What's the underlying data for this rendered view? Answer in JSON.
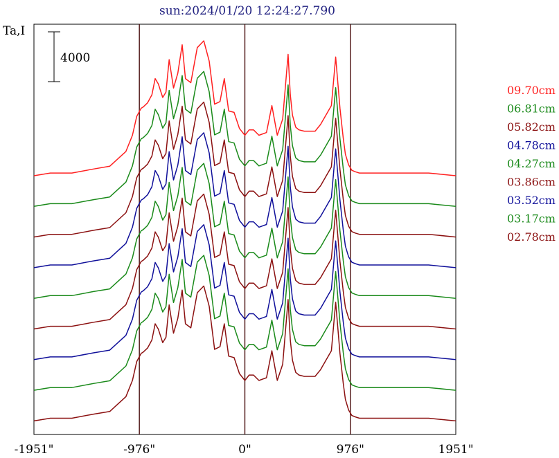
{
  "chart_data": {
    "type": "line",
    "title": "sun:2024/01/20 12:24:27.790",
    "ylabel": "Ta,I",
    "scale_bar_label": "4000",
    "scale_bar_value": 4000,
    "x_ticks": [
      {
        "value": -1951,
        "label": "-1951\""
      },
      {
        "value": -976,
        "label": "-976\""
      },
      {
        "value": 0,
        "label": "0\""
      },
      {
        "value": 976,
        "label": "976\""
      },
      {
        "value": 1951,
        "label": "1951\""
      }
    ],
    "xlim": [
      -1951,
      1951
    ],
    "vlines": [
      -976,
      0,
      976
    ],
    "legend_placement": "right",
    "series": [
      {
        "name": "09.70cm",
        "color": "#ff2020"
      },
      {
        "name": "06.81cm",
        "color": "#1a8a1a"
      },
      {
        "name": "05.82cm",
        "color": "#8b1010"
      },
      {
        "name": "04.78cm",
        "color": "#10109a"
      },
      {
        "name": "04.27cm",
        "color": "#1a8a1a"
      },
      {
        "name": "03.86cm",
        "color": "#8b1010"
      },
      {
        "name": "03.52cm",
        "color": "#10109a"
      },
      {
        "name": "03.17cm",
        "color": "#1a8a1a"
      },
      {
        "name": "02.78cm",
        "color": "#8b1010"
      }
    ],
    "profile_x": [
      -1951,
      -1800,
      -1600,
      -1400,
      -1250,
      -1100,
      -1040,
      -1000,
      -960,
      -940,
      -900,
      -860,
      -830,
      -800,
      -760,
      -730,
      -700,
      -660,
      -620,
      -580,
      -550,
      -500,
      -440,
      -380,
      -330,
      -280,
      -230,
      -190,
      -150,
      -100,
      -50,
      0,
      40,
      80,
      130,
      200,
      250,
      300,
      350,
      400,
      420,
      440,
      470,
      500,
      550,
      600,
      650,
      700,
      750,
      800,
      840,
      880,
      910,
      930,
      960,
      990,
      1020,
      1060,
      1150,
      1300,
      1500,
      1700,
      1951
    ],
    "profile_shape": [
      0.0,
      0.02,
      0.02,
      0.05,
      0.07,
      0.18,
      0.3,
      0.44,
      0.5,
      0.51,
      0.54,
      0.6,
      0.72,
      0.68,
      0.58,
      0.62,
      0.86,
      0.65,
      0.76,
      0.97,
      0.72,
      0.69,
      0.95,
      1.0,
      0.85,
      0.53,
      0.55,
      0.72,
      0.48,
      0.47,
      0.35,
      0.3,
      0.34,
      0.34,
      0.3,
      0.32,
      0.52,
      0.3,
      0.42,
      0.9,
      0.6,
      0.45,
      0.36,
      0.34,
      0.33,
      0.33,
      0.33,
      0.38,
      0.45,
      0.52,
      0.88,
      0.5,
      0.28,
      0.16,
      0.08,
      0.04,
      0.03,
      0.02,
      0.02,
      0.02,
      0.02,
      0.02,
      0.0
    ]
  }
}
